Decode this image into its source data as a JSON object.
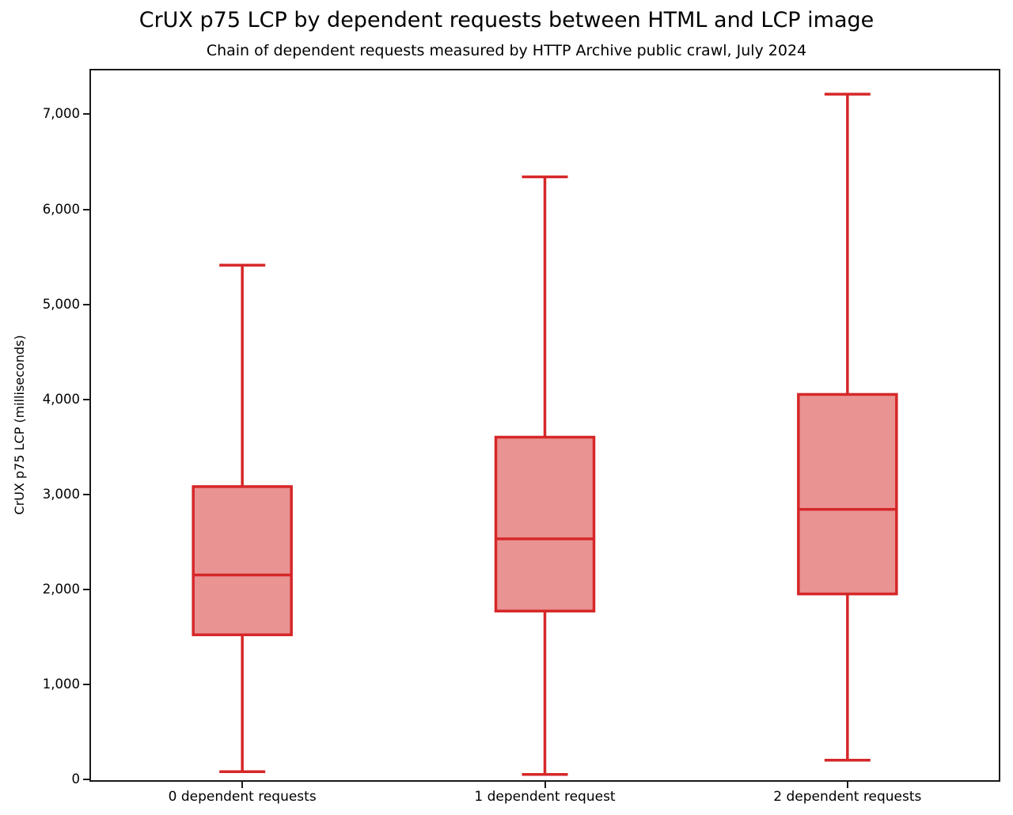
{
  "chart_data": {
    "type": "box",
    "title": "CrUX p75 LCP by dependent requests between HTML and LCP image",
    "subtitle": "Chain of dependent requests measured by HTTP Archive public crawl, July 2024",
    "ylabel": "CrUX p75 LCP (milliseconds)",
    "xlabel": "",
    "categories": [
      "0 dependent requests",
      "1 dependent request",
      "2 dependent requests"
    ],
    "series": [
      {
        "name": "0 dependent requests",
        "whisker_low": 90,
        "q1": 1530,
        "median": 2160,
        "q3": 3090,
        "whisker_high": 5420
      },
      {
        "name": "1 dependent request",
        "whisker_low": 60,
        "q1": 1780,
        "median": 2540,
        "q3": 3610,
        "whisker_high": 6350
      },
      {
        "name": "2 dependent requests",
        "whisker_low": 210,
        "q1": 1960,
        "median": 2850,
        "q3": 4060,
        "whisker_high": 7220
      }
    ],
    "ylim": [
      0,
      7470
    ],
    "yticks": [
      0,
      1000,
      2000,
      3000,
      4000,
      5000,
      6000,
      7000
    ],
    "ytick_labels": [
      "0",
      "1,000",
      "2,000",
      "3,000",
      "4,000",
      "5,000",
      "6,000",
      "7,000"
    ],
    "grid": false,
    "legend": null,
    "colors": {
      "box_edge": "#d62728",
      "box_fill": "#ea9393",
      "axis": "#1a1a1a",
      "text": "#000000"
    }
  }
}
